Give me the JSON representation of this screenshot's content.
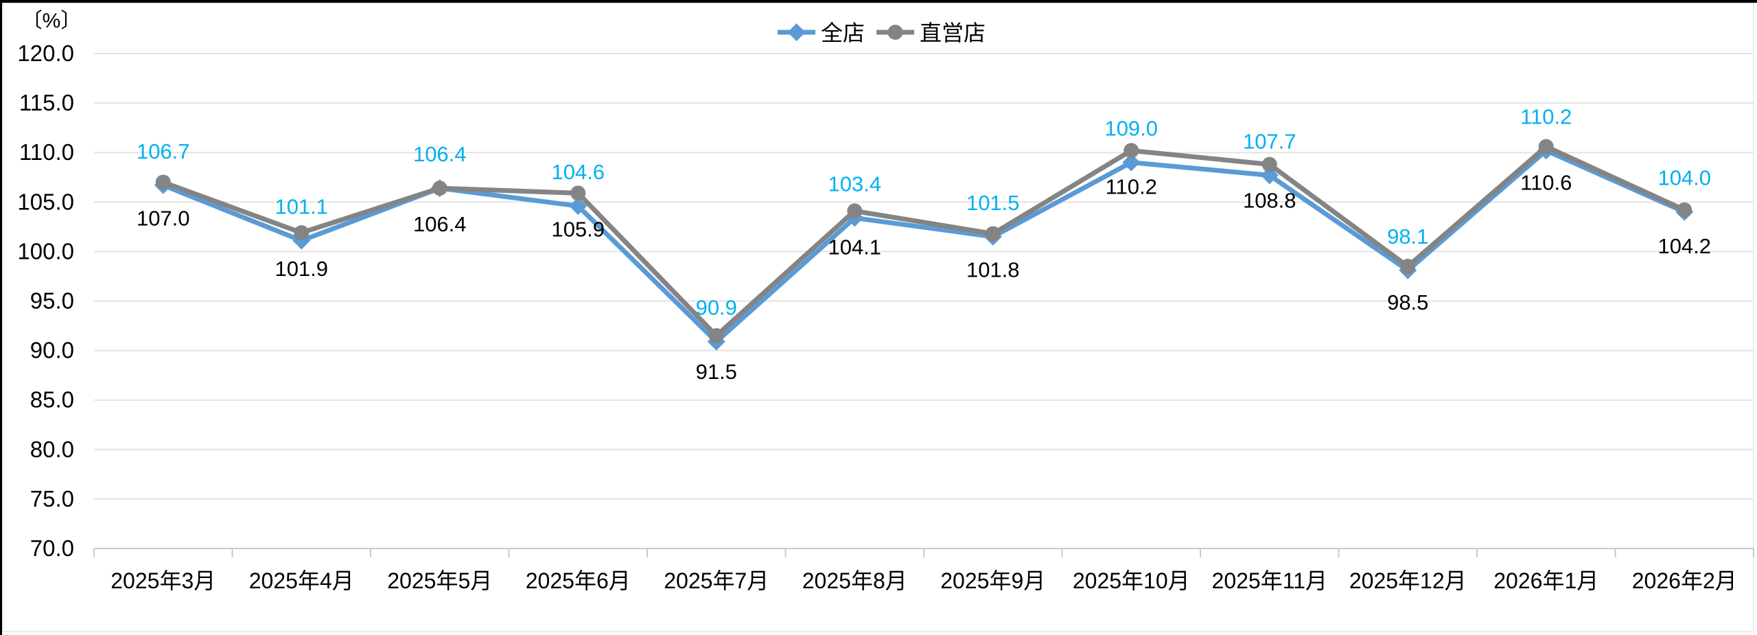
{
  "window": {
    "background": "#ffffff",
    "border_color": "#000000",
    "inner_line_color": "#ececec"
  },
  "chart_data": {
    "type": "line",
    "title": "",
    "unit_label": "〔%〕",
    "categories": [
      "2025年3月",
      "2025年4月",
      "2025年5月",
      "2025年6月",
      "2025年7月",
      "2025年8月",
      "2025年9月",
      "2025年10月",
      "2025年11月",
      "2025年12月",
      "2026年1月",
      "2026年2月"
    ],
    "series": [
      {
        "name": "全店",
        "values": [
          106.7,
          101.1,
          106.4,
          104.6,
          90.9,
          103.4,
          101.5,
          109.0,
          107.7,
          98.1,
          110.2,
          104.0
        ],
        "color": "#5B9BD5",
        "marker": "diamond",
        "label_color": "#00B0F0",
        "label_position": "above"
      },
      {
        "name": "直営店",
        "values": [
          107.0,
          101.9,
          106.4,
          105.9,
          91.5,
          104.1,
          101.8,
          110.2,
          108.8,
          98.5,
          110.6,
          104.2
        ],
        "color": "#848484",
        "marker": "circle",
        "label_color": "#000000",
        "label_position": "below"
      }
    ],
    "ylim": [
      70,
      120
    ],
    "ytick_step": 5,
    "ytick_labels": [
      "120.0",
      "115.0",
      "110.0",
      "105.0",
      "100.0",
      "95.0",
      "90.0",
      "85.0",
      "80.0",
      "75.0",
      "70.0"
    ],
    "grid": true,
    "legend_position": "top-center",
    "colors": {
      "gridline": "#e3e3e3",
      "axis_line": "#c9c9c9",
      "tick_text": "#000000",
      "category_text": "#000000"
    }
  }
}
